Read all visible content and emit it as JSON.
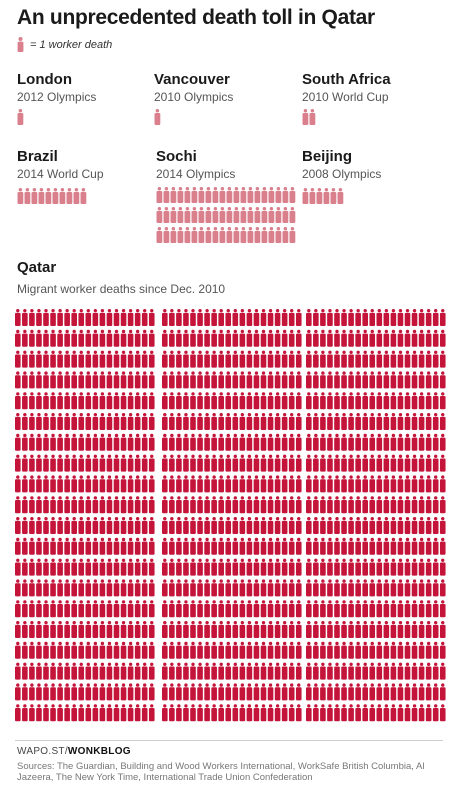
{
  "title": "An unprecedented death toll in Qatar",
  "legend": {
    "label": "= 1 worker death"
  },
  "colors": {
    "icon_light": "#d9808c",
    "icon_qatar": "#c4143a"
  },
  "chart_data": {
    "type": "pictogram",
    "unit": "1 worker death",
    "events": [
      {
        "name": "London",
        "sub": "2012 Olympics",
        "deaths": 1
      },
      {
        "name": "Vancouver",
        "sub": "2010 Olympics",
        "deaths": 1
      },
      {
        "name": "South Africa",
        "sub": "2010 World Cup",
        "deaths": 2
      },
      {
        "name": "Brazil",
        "sub": "2014 World Cup",
        "deaths": 10
      },
      {
        "name": "Sochi",
        "sub": "2014 Olympics",
        "deaths": 60
      },
      {
        "name": "Beijing",
        "sub": "2008 Olympics",
        "deaths": 6
      }
    ],
    "qatar": {
      "name": "Qatar",
      "sub": "Migrant worker deaths since Dec. 2010",
      "deaths": 1200
    }
  },
  "footer": {
    "byline_prefix": "WAPO.ST/",
    "byline_brand": "WONKBLOG",
    "sources": "Sources: The Guardian, Building and Wood Workers International, WorkSafe British Columbia, Al Jazeera, The New York Time, International Trade Union Confederation"
  }
}
